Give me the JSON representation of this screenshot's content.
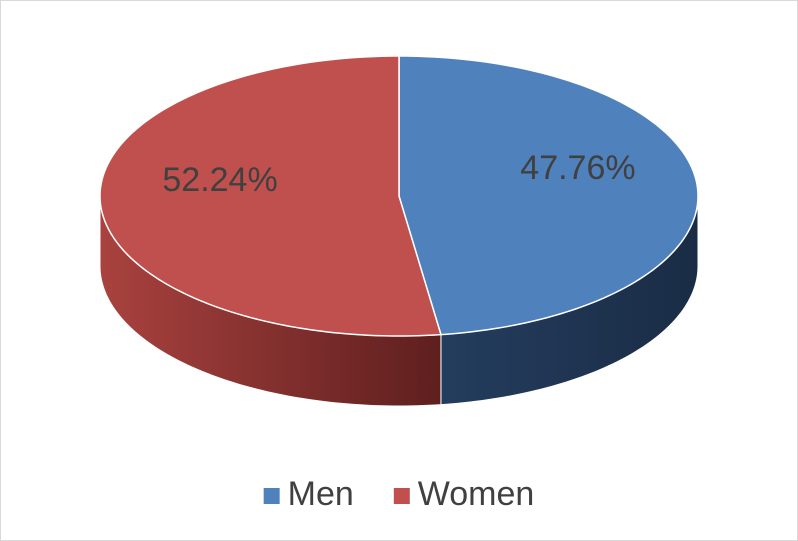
{
  "chart_data": {
    "type": "pie",
    "categories": [
      "Men",
      "Women"
    ],
    "values": [
      47.76,
      52.24
    ],
    "value_labels": [
      "47.76%",
      "52.24%"
    ],
    "colors": [
      "#4f81bd",
      "#c0504d"
    ],
    "legend": "bottom"
  }
}
